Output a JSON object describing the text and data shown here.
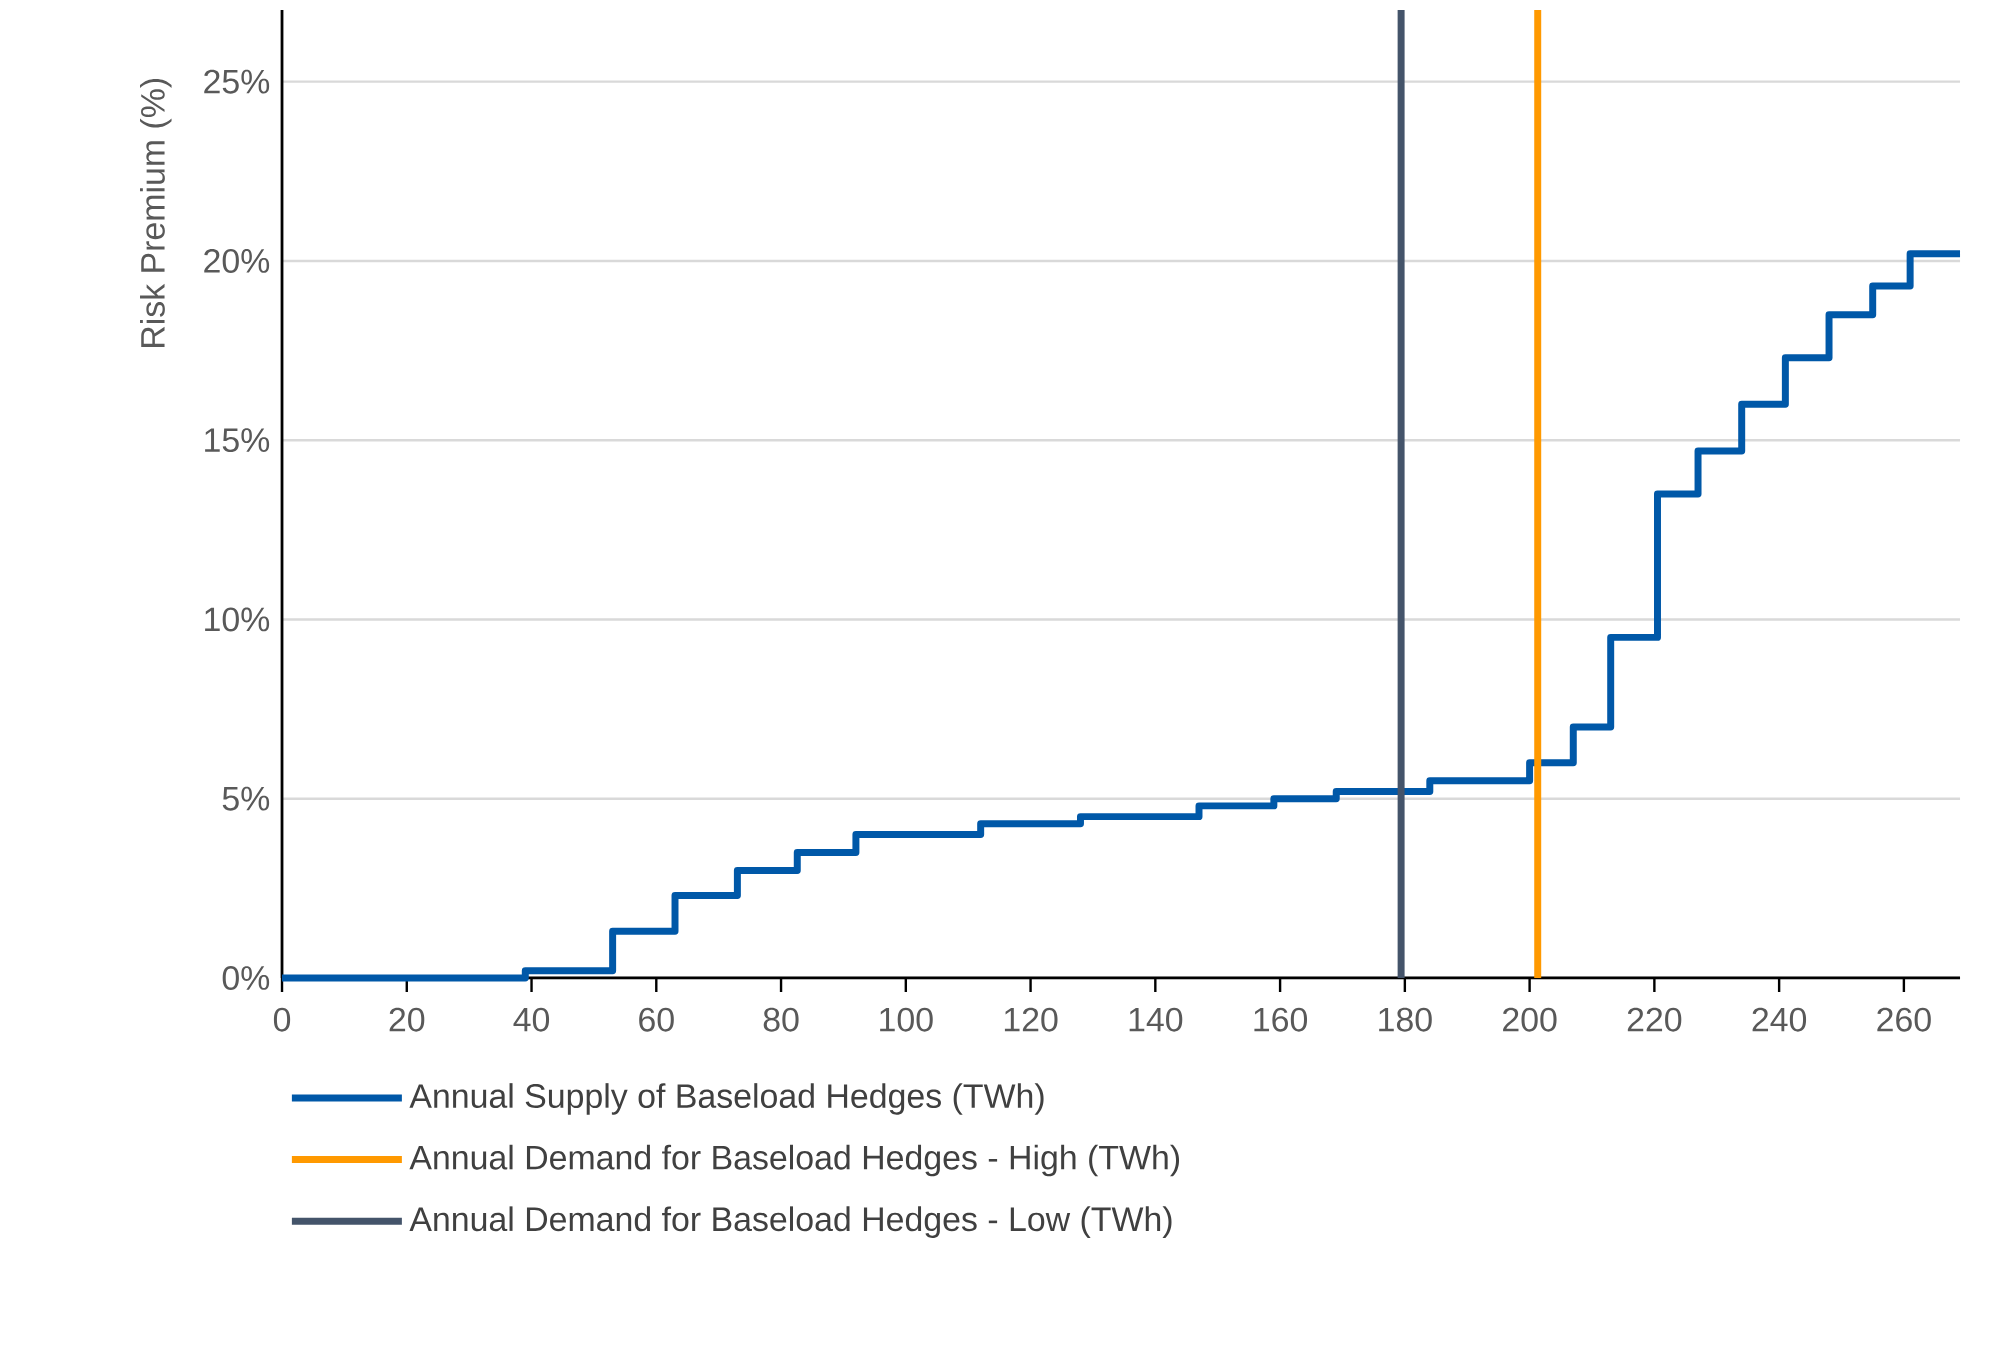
{
  "chart_data": {
    "type": "step",
    "ylabel": "Risk Premium (%)",
    "x": [
      0,
      39,
      53,
      63,
      73,
      82.6,
      92,
      112,
      128,
      147,
      159,
      169,
      184,
      200,
      207,
      213,
      220.5,
      227,
      234,
      241,
      248,
      255,
      261,
      269
    ],
    "series": [
      {
        "name": "Annual Supply of Baseload Hedges (TWh)",
        "color": "#0058a8",
        "values": [
          0,
          0.2,
          1.3,
          2.3,
          3.0,
          3.5,
          4.0,
          4.3,
          4.5,
          4.8,
          5.0,
          5.2,
          5.5,
          6.0,
          7.0,
          9.5,
          13.5,
          14.7,
          16.0,
          17.3,
          18.5,
          19.3,
          20.2,
          20.2
        ]
      }
    ],
    "ref_lines": [
      {
        "axis": "x",
        "value": 201.3,
        "label": "Annual Demand for Baseload Hedges - High (TWh)",
        "color": "#ff9900"
      },
      {
        "axis": "x",
        "value": 179.4,
        "label": "Annual Demand for Baseload Hedges - Low (TWh)",
        "color": "#44546a"
      }
    ],
    "xlim": [
      0,
      269
    ],
    "xticks": [
      0,
      20,
      40,
      60,
      80,
      100,
      120,
      140,
      160,
      180,
      200,
      220,
      240,
      260
    ],
    "ylim": [
      0,
      27
    ],
    "yticks": [
      {
        "value": 0,
        "label": "0%"
      },
      {
        "value": 5,
        "label": "5%"
      },
      {
        "value": 10,
        "label": "10%"
      },
      {
        "value": 15,
        "label": "15%"
      },
      {
        "value": 20,
        "label": "20%"
      },
      {
        "value": 25,
        "label": "25%"
      }
    ],
    "grid": "y",
    "legend": "bottom",
    "marker": "none",
    "line_style": "solid"
  }
}
